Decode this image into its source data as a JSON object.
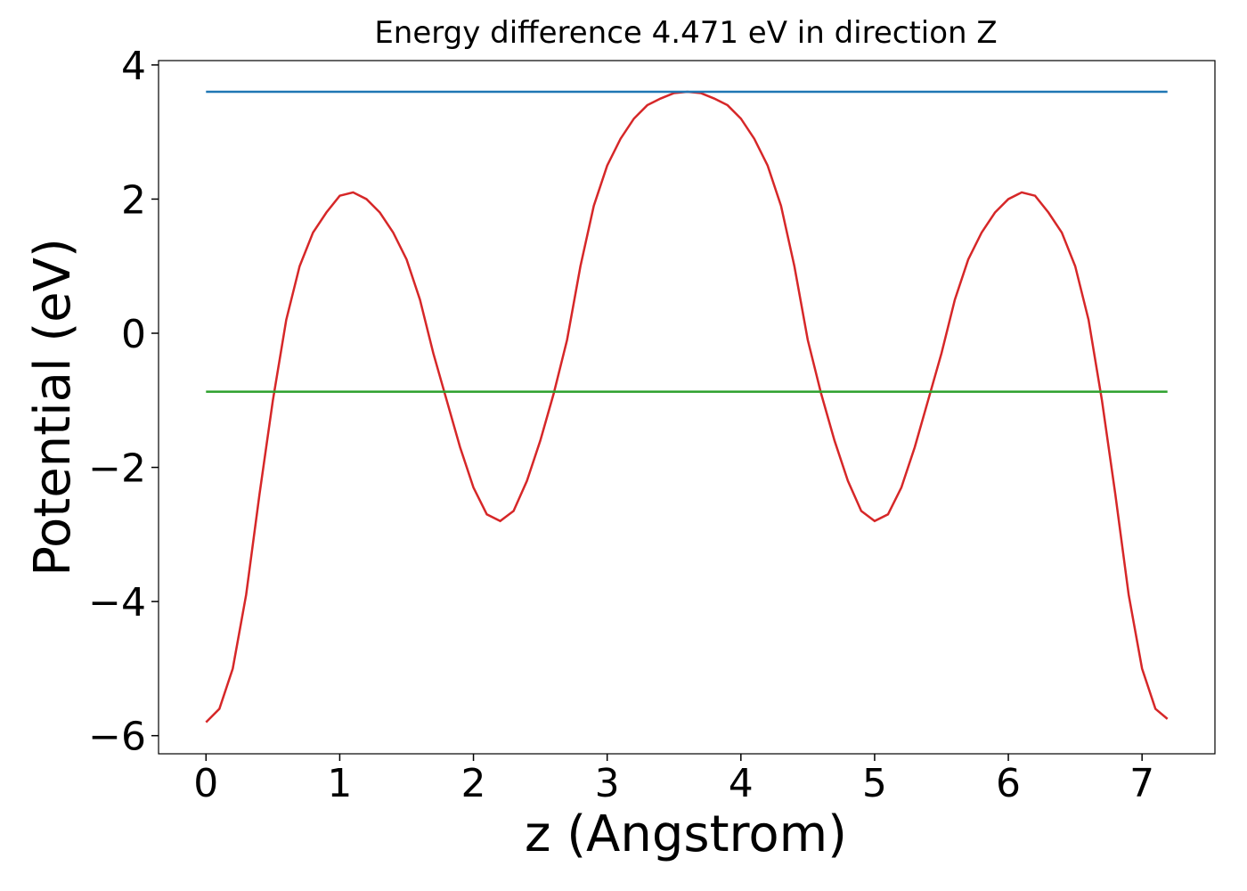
{
  "chart_data": {
    "type": "line",
    "title": "Energy difference 4.471 eV in direction Z",
    "xlabel": "z (Angstrom)",
    "ylabel": "Potential (eV)",
    "xlim": [
      -0.355,
      7.545
    ],
    "ylim": [
      -6.27,
      4.065
    ],
    "xticks": [
      0,
      1,
      2,
      3,
      4,
      5,
      6,
      7
    ],
    "yticks": [
      {
        "value": -6,
        "label": "−6"
      },
      {
        "value": -4,
        "label": "−4"
      },
      {
        "value": -2,
        "label": "−2"
      },
      0,
      2,
      4
    ],
    "series": [
      {
        "color": "#d62728",
        "x": [
          0,
          0.1,
          0.2,
          0.3,
          0.4,
          0.5,
          0.6,
          0.7,
          0.8,
          0.9,
          1.0,
          1.1,
          1.2,
          1.3,
          1.4,
          1.5,
          1.6,
          1.7,
          1.8,
          1.9,
          2.0,
          2.1,
          2.2,
          2.3,
          2.4,
          2.5,
          2.6,
          2.7,
          2.8,
          2.9,
          3.0,
          3.1,
          3.2,
          3.3,
          3.4,
          3.5,
          3.6,
          3.7,
          3.8,
          3.9,
          4.0,
          4.1,
          4.2,
          4.3,
          4.4,
          4.5,
          4.6,
          4.7,
          4.8,
          4.9,
          5.0,
          5.1,
          5.2,
          5.3,
          5.4,
          5.5,
          5.6,
          5.7,
          5.8,
          5.9,
          6.0,
          6.1,
          6.2,
          6.3,
          6.4,
          6.5,
          6.6,
          6.7,
          6.8,
          6.9,
          7.0,
          7.1,
          7.19
        ],
        "values": [
          -5.8,
          -5.6,
          -5.0,
          -3.9,
          -2.4,
          -1.0,
          0.2,
          1.0,
          1.5,
          1.8,
          2.05,
          2.1,
          2.0,
          1.8,
          1.5,
          1.1,
          0.5,
          -0.3,
          -1.0,
          -1.7,
          -2.3,
          -2.7,
          -2.8,
          -2.65,
          -2.2,
          -1.6,
          -0.9,
          -0.1,
          1.0,
          1.9,
          2.5,
          2.9,
          3.2,
          3.4,
          3.5,
          3.58,
          3.6,
          3.58,
          3.5,
          3.4,
          3.2,
          2.9,
          2.5,
          1.9,
          1.0,
          -0.1,
          -0.9,
          -1.6,
          -2.2,
          -2.65,
          -2.8,
          -2.7,
          -2.3,
          -1.7,
          -1.0,
          -0.3,
          0.5,
          1.1,
          1.5,
          1.8,
          2.0,
          2.1,
          2.05,
          1.8,
          1.5,
          1.0,
          0.2,
          -1.0,
          -2.4,
          -3.9,
          -5.0,
          -5.6,
          -5.75
        ]
      },
      {
        "color": "#1f77b4",
        "x": [
          0,
          7.19
        ],
        "values": [
          3.6,
          3.6
        ]
      },
      {
        "color": "#2ca02c",
        "x": [
          0,
          7.19
        ],
        "values": [
          -0.871,
          -0.871
        ]
      }
    ]
  }
}
